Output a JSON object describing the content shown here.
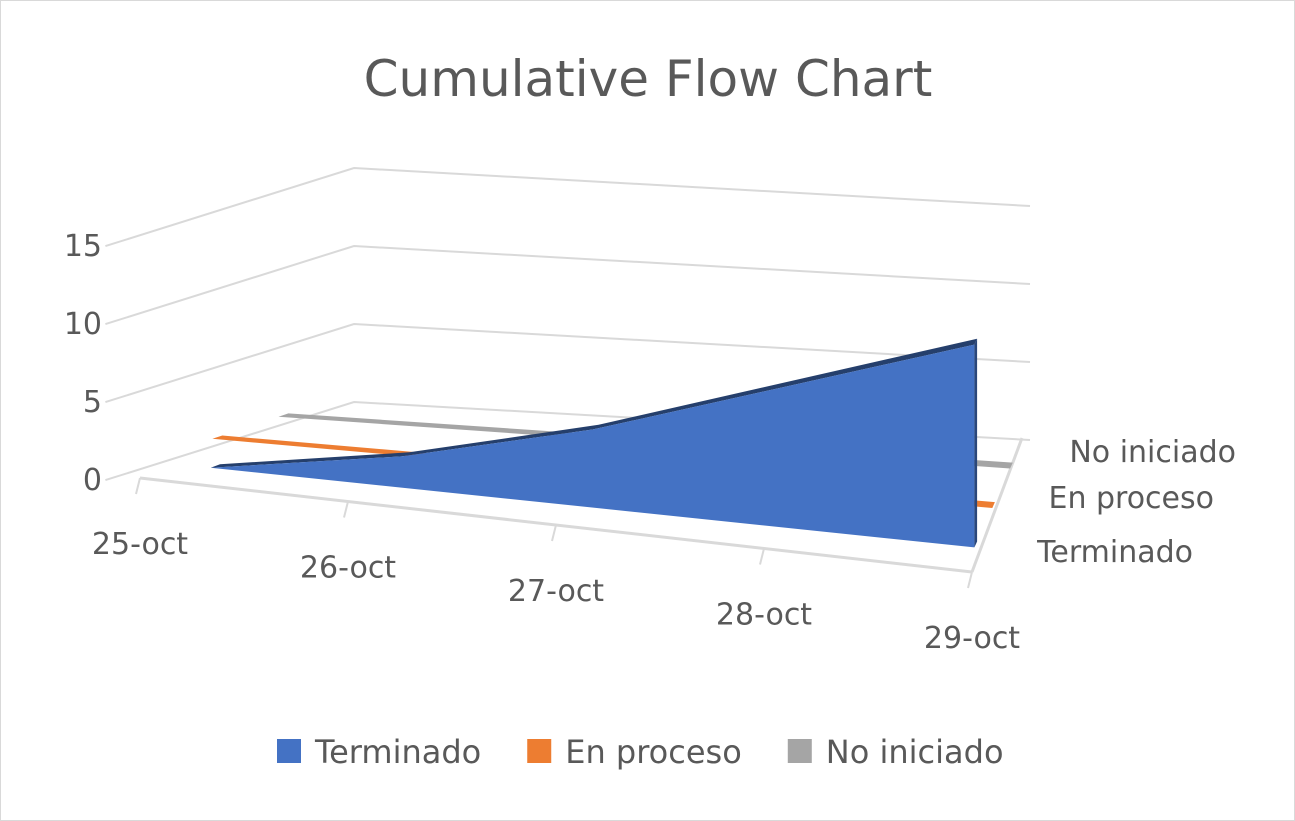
{
  "chart_data": {
    "type": "area",
    "view": "3d",
    "title": "Cumulative Flow Chart",
    "xlabel": "",
    "ylabel": "",
    "categories": [
      "25-oct",
      "26-oct",
      "27-oct",
      "28-oct",
      "29-oct"
    ],
    "y_ticks": [
      0,
      5,
      10,
      15
    ],
    "ylim": [
      0,
      15
    ],
    "grid": true,
    "legend_position": "bottom",
    "depth_labels": [
      "No iniciado",
      "En proceso",
      "Terminado"
    ],
    "series": [
      {
        "name": "Terminado",
        "color": "#4472c4",
        "values": [
          0,
          2,
          5,
          9,
          13
        ]
      },
      {
        "name": "En proceso",
        "color": "#ed7d31",
        "values": [
          0,
          0,
          0,
          0,
          0
        ]
      },
      {
        "name": "No iniciado",
        "color": "#a5a5a5",
        "values": [
          0,
          0,
          0,
          0,
          0
        ]
      }
    ]
  }
}
